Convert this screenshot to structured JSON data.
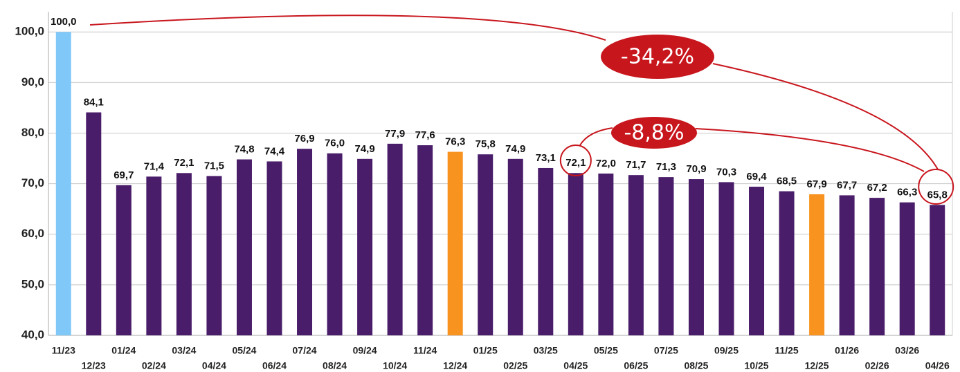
{
  "chart_data": {
    "type": "bar",
    "categories": [
      "11/23",
      "12/23",
      "01/24",
      "02/24",
      "03/24",
      "04/24",
      "05/24",
      "06/24",
      "07/24",
      "08/24",
      "09/24",
      "10/24",
      "11/24",
      "12/24",
      "01/25",
      "02/25",
      "03/25",
      "04/25",
      "05/25",
      "06/25",
      "07/25",
      "08/25",
      "09/25",
      "10/25",
      "11/25",
      "12/25",
      "01/26",
      "02/26",
      "03/26",
      "04/26"
    ],
    "values": [
      100.0,
      84.1,
      69.7,
      71.4,
      72.1,
      71.5,
      74.8,
      74.4,
      76.9,
      76.0,
      74.9,
      77.9,
      77.6,
      76.3,
      75.8,
      74.9,
      73.1,
      72.1,
      72.0,
      71.7,
      71.3,
      70.9,
      70.3,
      69.4,
      68.5,
      67.9,
      67.7,
      67.2,
      66.3,
      65.8
    ],
    "value_labels": [
      "100,0",
      "84,1",
      "69,7",
      "71,4",
      "72,1",
      "71,5",
      "74,8",
      "74,4",
      "76,9",
      "76,0",
      "74,9",
      "77,9",
      "77,6",
      "76,3",
      "75,8",
      "74,9",
      "73,1",
      "72,1",
      "72,0",
      "71,7",
      "71,3",
      "70,9",
      "70,3",
      "69,4",
      "68,5",
      "67,9",
      "67,7",
      "67,2",
      "66,3",
      "65,8"
    ],
    "colors": [
      "#80c8f8",
      "#4a1d6a",
      "#4a1d6a",
      "#4a1d6a",
      "#4a1d6a",
      "#4a1d6a",
      "#4a1d6a",
      "#4a1d6a",
      "#4a1d6a",
      "#4a1d6a",
      "#4a1d6a",
      "#4a1d6a",
      "#4a1d6a",
      "#f7931e",
      "#4a1d6a",
      "#4a1d6a",
      "#4a1d6a",
      "#4a1d6a",
      "#4a1d6a",
      "#4a1d6a",
      "#4a1d6a",
      "#4a1d6a",
      "#4a1d6a",
      "#4a1d6a",
      "#4a1d6a",
      "#f7931e",
      "#4a1d6a",
      "#4a1d6a",
      "#4a1d6a",
      "#4a1d6a"
    ],
    "ylim": [
      40,
      104
    ],
    "yticks": [
      {
        "value": 40,
        "label": "40,0"
      },
      {
        "value": 50,
        "label": "50,0"
      },
      {
        "value": 60,
        "label": "60,0"
      },
      {
        "value": 70,
        "label": "70,0"
      },
      {
        "value": 80,
        "label": "80,0"
      },
      {
        "value": 90,
        "label": "90,0"
      },
      {
        "value": 100,
        "label": "100,0"
      }
    ],
    "grid": true,
    "annotations": [
      "-34,2%",
      "-8,8%"
    ]
  }
}
